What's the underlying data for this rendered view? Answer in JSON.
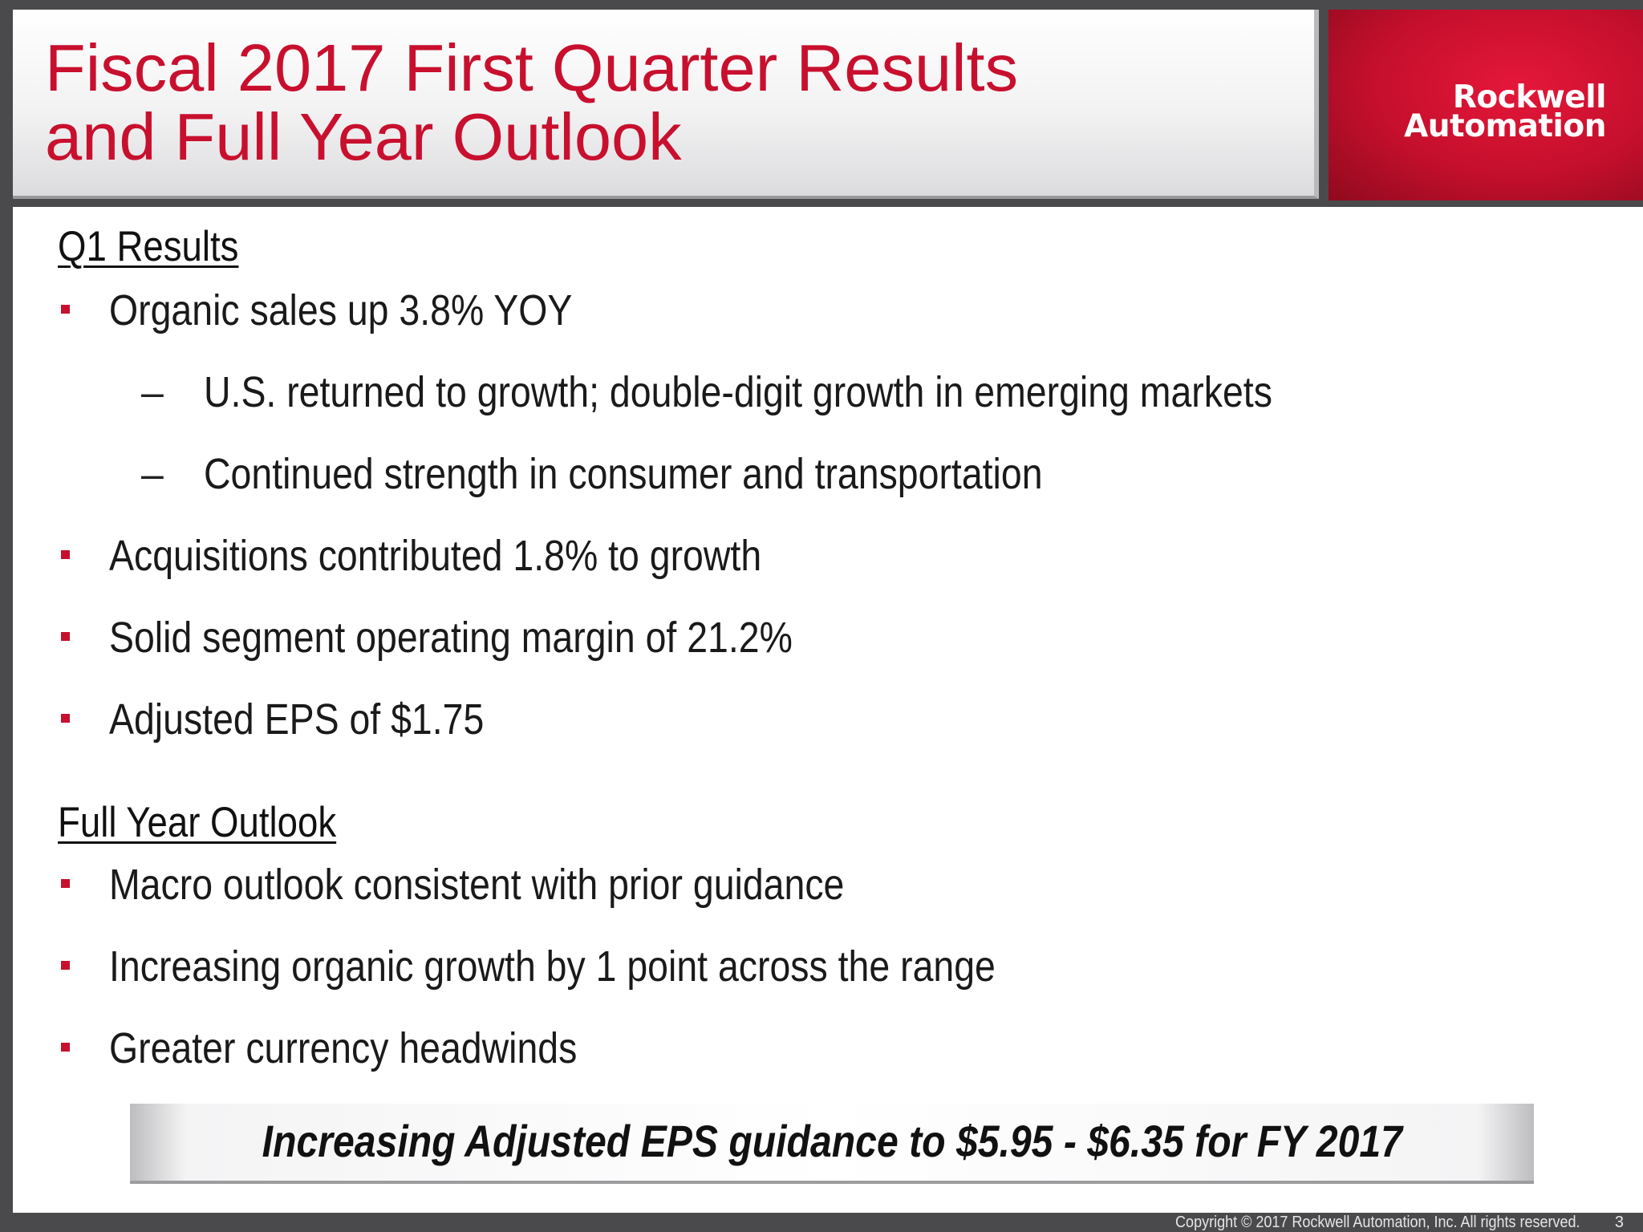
{
  "header": {
    "title_line1": "Fiscal 2017 First Quarter Results",
    "title_line2": "and Full Year Outlook",
    "logo_line1": "Rockwell",
    "logo_line2": "Automation"
  },
  "sections": [
    {
      "heading": "Q1 Results",
      "items": [
        {
          "level": 1,
          "text": "Organic sales up 3.8% YOY"
        },
        {
          "level": 2,
          "text": "U.S. returned to growth; double-digit growth in emerging markets"
        },
        {
          "level": 2,
          "text": "Continued strength in consumer and transportation"
        },
        {
          "level": 1,
          "text": "Acquisitions contributed 1.8% to growth"
        },
        {
          "level": 1,
          "text": "Solid segment operating margin of 21.2%"
        },
        {
          "level": 1,
          "text": "Adjusted EPS of $1.75"
        }
      ]
    },
    {
      "heading": "Full Year Outlook",
      "items": [
        {
          "level": 1,
          "text": "Macro outlook consistent with prior guidance"
        },
        {
          "level": 1,
          "text": "Increasing organic growth by 1 point across the range"
        },
        {
          "level": 1,
          "text": "Greater currency headwinds"
        }
      ]
    }
  ],
  "banner": "Increasing Adjusted EPS guidance to $5.95 - $6.35 for FY 2017",
  "footer": {
    "copyright": "Copyright © 2017 Rockwell Automation, Inc.  All rights reserved.",
    "page_number": "3"
  },
  "colors": {
    "accent_red": "#c8102e",
    "frame_gray": "#4a4a4c"
  },
  "icons": {
    "bullet": "red-square-bullet-icon",
    "dash": "en-dash"
  }
}
